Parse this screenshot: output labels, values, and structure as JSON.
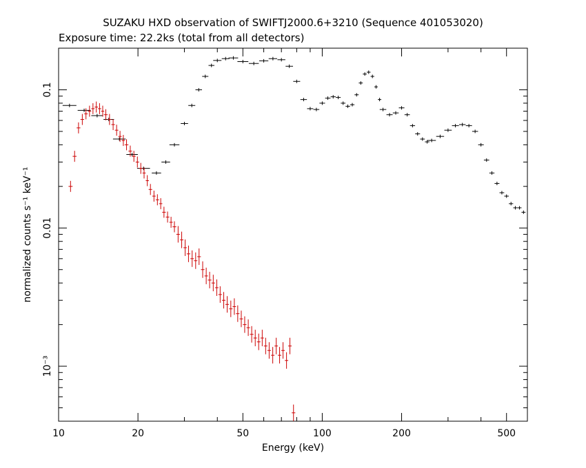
{
  "chart_data": {
    "type": "scatter",
    "title": "SUZAKU HXD observation of SWIFTJ2000.6+3210 (Sequence 401053020)",
    "subtitle": "Exposure time: 22.2ks (total from all detectors)",
    "xlabel": "Energy (keV)",
    "ylabel": "normalized counts s⁻¹ keV⁻¹",
    "x_scale": "log",
    "y_scale": "log",
    "xlim": [
      10,
      600
    ],
    "ylim": [
      0.0004,
      0.2
    ],
    "x_ticks": [
      {
        "value": 10,
        "label": "10"
      },
      {
        "value": 20,
        "label": "20"
      },
      {
        "value": 50,
        "label": "50"
      },
      {
        "value": 100,
        "label": "100"
      },
      {
        "value": 200,
        "label": "200"
      },
      {
        "value": 500,
        "label": "500"
      }
    ],
    "y_ticks": [
      {
        "value": 0.1,
        "label": "0.1"
      },
      {
        "value": 0.01,
        "label": "0.01"
      },
      {
        "value": 0.001,
        "label": "10⁻³"
      }
    ],
    "grid": false,
    "legend": "none",
    "series": [
      {
        "color": "#000000",
        "points": [
          {
            "x": 11,
            "y": 0.077
          },
          {
            "x": 12.5,
            "y": 0.071
          },
          {
            "x": 14,
            "y": 0.065
          },
          {
            "x": 15.5,
            "y": 0.061
          },
          {
            "x": 17,
            "y": 0.044
          },
          {
            "x": 19,
            "y": 0.034
          },
          {
            "x": 21,
            "y": 0.027
          },
          {
            "x": 23.5,
            "y": 0.025
          },
          {
            "x": 25.5,
            "y": 0.03
          },
          {
            "x": 27.5,
            "y": 0.04
          },
          {
            "x": 30,
            "y": 0.057
          },
          {
            "x": 32,
            "y": 0.077
          },
          {
            "x": 34,
            "y": 0.1
          },
          {
            "x": 36,
            "y": 0.125
          },
          {
            "x": 38,
            "y": 0.15
          },
          {
            "x": 40,
            "y": 0.163
          },
          {
            "x": 43,
            "y": 0.168
          },
          {
            "x": 46,
            "y": 0.17
          },
          {
            "x": 50,
            "y": 0.16
          },
          {
            "x": 55,
            "y": 0.155
          },
          {
            "x": 60,
            "y": 0.162
          },
          {
            "x": 65,
            "y": 0.168
          },
          {
            "x": 70,
            "y": 0.165
          },
          {
            "x": 75,
            "y": 0.148
          },
          {
            "x": 80,
            "y": 0.115
          },
          {
            "x": 85,
            "y": 0.085
          },
          {
            "x": 90,
            "y": 0.073
          },
          {
            "x": 95,
            "y": 0.072
          },
          {
            "x": 100,
            "y": 0.08
          },
          {
            "x": 105,
            "y": 0.087
          },
          {
            "x": 110,
            "y": 0.089
          },
          {
            "x": 115,
            "y": 0.088
          },
          {
            "x": 120,
            "y": 0.08
          },
          {
            "x": 125,
            "y": 0.076
          },
          {
            "x": 130,
            "y": 0.078
          },
          {
            "x": 135,
            "y": 0.092
          },
          {
            "x": 140,
            "y": 0.112
          },
          {
            "x": 145,
            "y": 0.13
          },
          {
            "x": 150,
            "y": 0.134
          },
          {
            "x": 155,
            "y": 0.125
          },
          {
            "x": 160,
            "y": 0.105
          },
          {
            "x": 165,
            "y": 0.085
          },
          {
            "x": 170,
            "y": 0.072
          },
          {
            "x": 180,
            "y": 0.066
          },
          {
            "x": 190,
            "y": 0.068
          },
          {
            "x": 200,
            "y": 0.074
          },
          {
            "x": 210,
            "y": 0.066
          },
          {
            "x": 220,
            "y": 0.055
          },
          {
            "x": 230,
            "y": 0.048
          },
          {
            "x": 240,
            "y": 0.044
          },
          {
            "x": 250,
            "y": 0.042
          },
          {
            "x": 260,
            "y": 0.043
          },
          {
            "x": 280,
            "y": 0.046
          },
          {
            "x": 300,
            "y": 0.051
          },
          {
            "x": 320,
            "y": 0.055
          },
          {
            "x": 340,
            "y": 0.056
          },
          {
            "x": 360,
            "y": 0.055
          },
          {
            "x": 380,
            "y": 0.05
          },
          {
            "x": 400,
            "y": 0.04
          },
          {
            "x": 420,
            "y": 0.031
          },
          {
            "x": 440,
            "y": 0.025
          },
          {
            "x": 460,
            "y": 0.021
          },
          {
            "x": 480,
            "y": 0.018
          },
          {
            "x": 500,
            "y": 0.017
          },
          {
            "x": 520,
            "y": 0.015
          },
          {
            "x": 540,
            "y": 0.014
          },
          {
            "x": 560,
            "y": 0.014
          },
          {
            "x": 580,
            "y": 0.013
          }
        ]
      },
      {
        "color": "#cc0000",
        "points": [
          {
            "x": 11.1,
            "y": 0.02
          },
          {
            "x": 11.5,
            "y": 0.033
          },
          {
            "x": 11.9,
            "y": 0.053
          },
          {
            "x": 12.3,
            "y": 0.061
          },
          {
            "x": 12.7,
            "y": 0.067
          },
          {
            "x": 13.1,
            "y": 0.07
          },
          {
            "x": 13.5,
            "y": 0.073
          },
          {
            "x": 13.9,
            "y": 0.075
          },
          {
            "x": 14.3,
            "y": 0.073
          },
          {
            "x": 14.7,
            "y": 0.07
          },
          {
            "x": 15.1,
            "y": 0.066
          },
          {
            "x": 15.6,
            "y": 0.061
          },
          {
            "x": 16.1,
            "y": 0.056
          },
          {
            "x": 16.6,
            "y": 0.051
          },
          {
            "x": 17.1,
            "y": 0.046
          },
          {
            "x": 17.6,
            "y": 0.043
          },
          {
            "x": 18.1,
            "y": 0.04
          },
          {
            "x": 18.7,
            "y": 0.036
          },
          {
            "x": 19.3,
            "y": 0.033
          },
          {
            "x": 19.9,
            "y": 0.03
          },
          {
            "x": 20.5,
            "y": 0.027
          },
          {
            "x": 21.1,
            "y": 0.025
          },
          {
            "x": 21.7,
            "y": 0.022
          },
          {
            "x": 22.3,
            "y": 0.019
          },
          {
            "x": 23.0,
            "y": 0.017
          },
          {
            "x": 23.7,
            "y": 0.016
          },
          {
            "x": 24.4,
            "y": 0.015
          },
          {
            "x": 25.1,
            "y": 0.013
          },
          {
            "x": 25.9,
            "y": 0.012
          },
          {
            "x": 26.7,
            "y": 0.011
          },
          {
            "x": 27.5,
            "y": 0.0102
          },
          {
            "x": 28.4,
            "y": 0.009
          },
          {
            "x": 29.3,
            "y": 0.0082
          },
          {
            "x": 30.2,
            "y": 0.0072
          },
          {
            "x": 31.1,
            "y": 0.0065
          },
          {
            "x": 32.1,
            "y": 0.006
          },
          {
            "x": 33.1,
            "y": 0.0058
          },
          {
            "x": 34.1,
            "y": 0.0062
          },
          {
            "x": 35.2,
            "y": 0.005
          },
          {
            "x": 36.3,
            "y": 0.0045
          },
          {
            "x": 37.4,
            "y": 0.0042
          },
          {
            "x": 38.6,
            "y": 0.004
          },
          {
            "x": 39.8,
            "y": 0.0037
          },
          {
            "x": 41.0,
            "y": 0.0033
          },
          {
            "x": 42.3,
            "y": 0.003
          },
          {
            "x": 43.6,
            "y": 0.0028
          },
          {
            "x": 45.0,
            "y": 0.0026
          },
          {
            "x": 46.4,
            "y": 0.0027
          },
          {
            "x": 47.8,
            "y": 0.0024
          },
          {
            "x": 49.3,
            "y": 0.0022
          },
          {
            "x": 50.8,
            "y": 0.002
          },
          {
            "x": 52.4,
            "y": 0.0019
          },
          {
            "x": 54.0,
            "y": 0.0017
          },
          {
            "x": 55.7,
            "y": 0.0016
          },
          {
            "x": 57.4,
            "y": 0.0015
          },
          {
            "x": 59.2,
            "y": 0.0016
          },
          {
            "x": 61.0,
            "y": 0.0014
          },
          {
            "x": 62.9,
            "y": 0.0013
          },
          {
            "x": 64.9,
            "y": 0.0012
          },
          {
            "x": 66.9,
            "y": 0.0014
          },
          {
            "x": 68.9,
            "y": 0.0012
          },
          {
            "x": 71.0,
            "y": 0.0013
          },
          {
            "x": 73.2,
            "y": 0.0011
          },
          {
            "x": 75.4,
            "y": 0.0014
          },
          {
            "x": 77.8,
            "y": 0.00046
          }
        ]
      }
    ]
  }
}
